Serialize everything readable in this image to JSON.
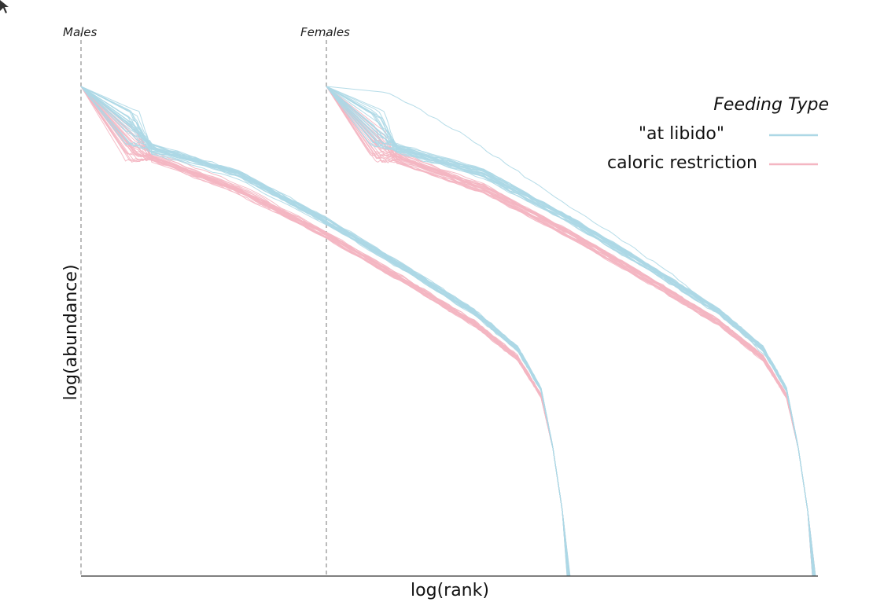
{
  "chart_data": {
    "type": "line",
    "xlabel": "log(rank)",
    "ylabel": "log(abundance)",
    "panels": [
      {
        "label": "Males"
      },
      {
        "label": "Females"
      }
    ],
    "legend": {
      "title": "Feeding Type",
      "placement": "top-right",
      "entries": [
        {
          "label": "\"at libido\"",
          "color": "#add8e6"
        },
        {
          "label": "caloric restriction",
          "color": "#f4b6c2"
        }
      ]
    },
    "grid": false,
    "series_per_group_approx": 30,
    "note_values": "rank-abundance curves; axes unlabeled numerically"
  },
  "colors": {
    "at_libido": "#add8e6",
    "caloric_restriction": "#f4b6c2",
    "axis": "#333333",
    "guide": "#777777"
  }
}
